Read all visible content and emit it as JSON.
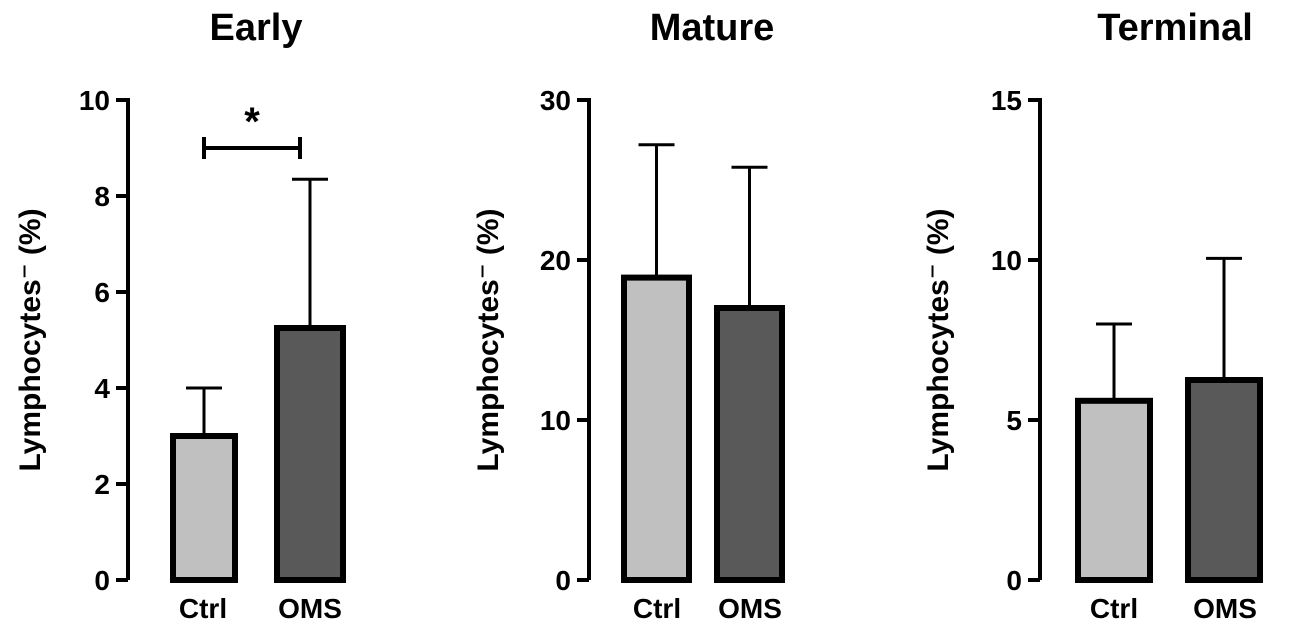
{
  "chart_data": [
    {
      "type": "bar",
      "title": "Early",
      "ylabel": "Lymphocytes⁻ (%)",
      "categories": [
        "Ctrl",
        "OMS"
      ],
      "values": [
        3.0,
        5.25
      ],
      "error_upper": [
        4.0,
        8.35
      ],
      "ylim": [
        0,
        10
      ],
      "yticks": [
        0,
        2,
        4,
        6,
        8,
        10
      ],
      "colors": [
        "#c0c0c0",
        "#595959"
      ],
      "significance": {
        "label": "*",
        "between": [
          "Ctrl",
          "OMS"
        ]
      }
    },
    {
      "type": "bar",
      "title": "Mature",
      "ylabel": "Lymphocytes⁻ (%)",
      "categories": [
        "Ctrl",
        "OMS"
      ],
      "values": [
        18.9,
        17.0
      ],
      "error_upper": [
        27.2,
        25.8
      ],
      "ylim": [
        0,
        30
      ],
      "yticks": [
        0,
        10,
        20,
        30
      ],
      "colors": [
        "#c0c0c0",
        "#595959"
      ]
    },
    {
      "type": "bar",
      "title": "Terminal",
      "ylabel": "Lymphocytes⁻ (%)",
      "categories": [
        "Ctrl",
        "OMS"
      ],
      "values": [
        5.6,
        6.25
      ],
      "error_upper": [
        8.0,
        10.05
      ],
      "ylim": [
        0,
        15
      ],
      "yticks": [
        0,
        5,
        10,
        15
      ],
      "colors": [
        "#c0c0c0",
        "#595959"
      ]
    }
  ]
}
